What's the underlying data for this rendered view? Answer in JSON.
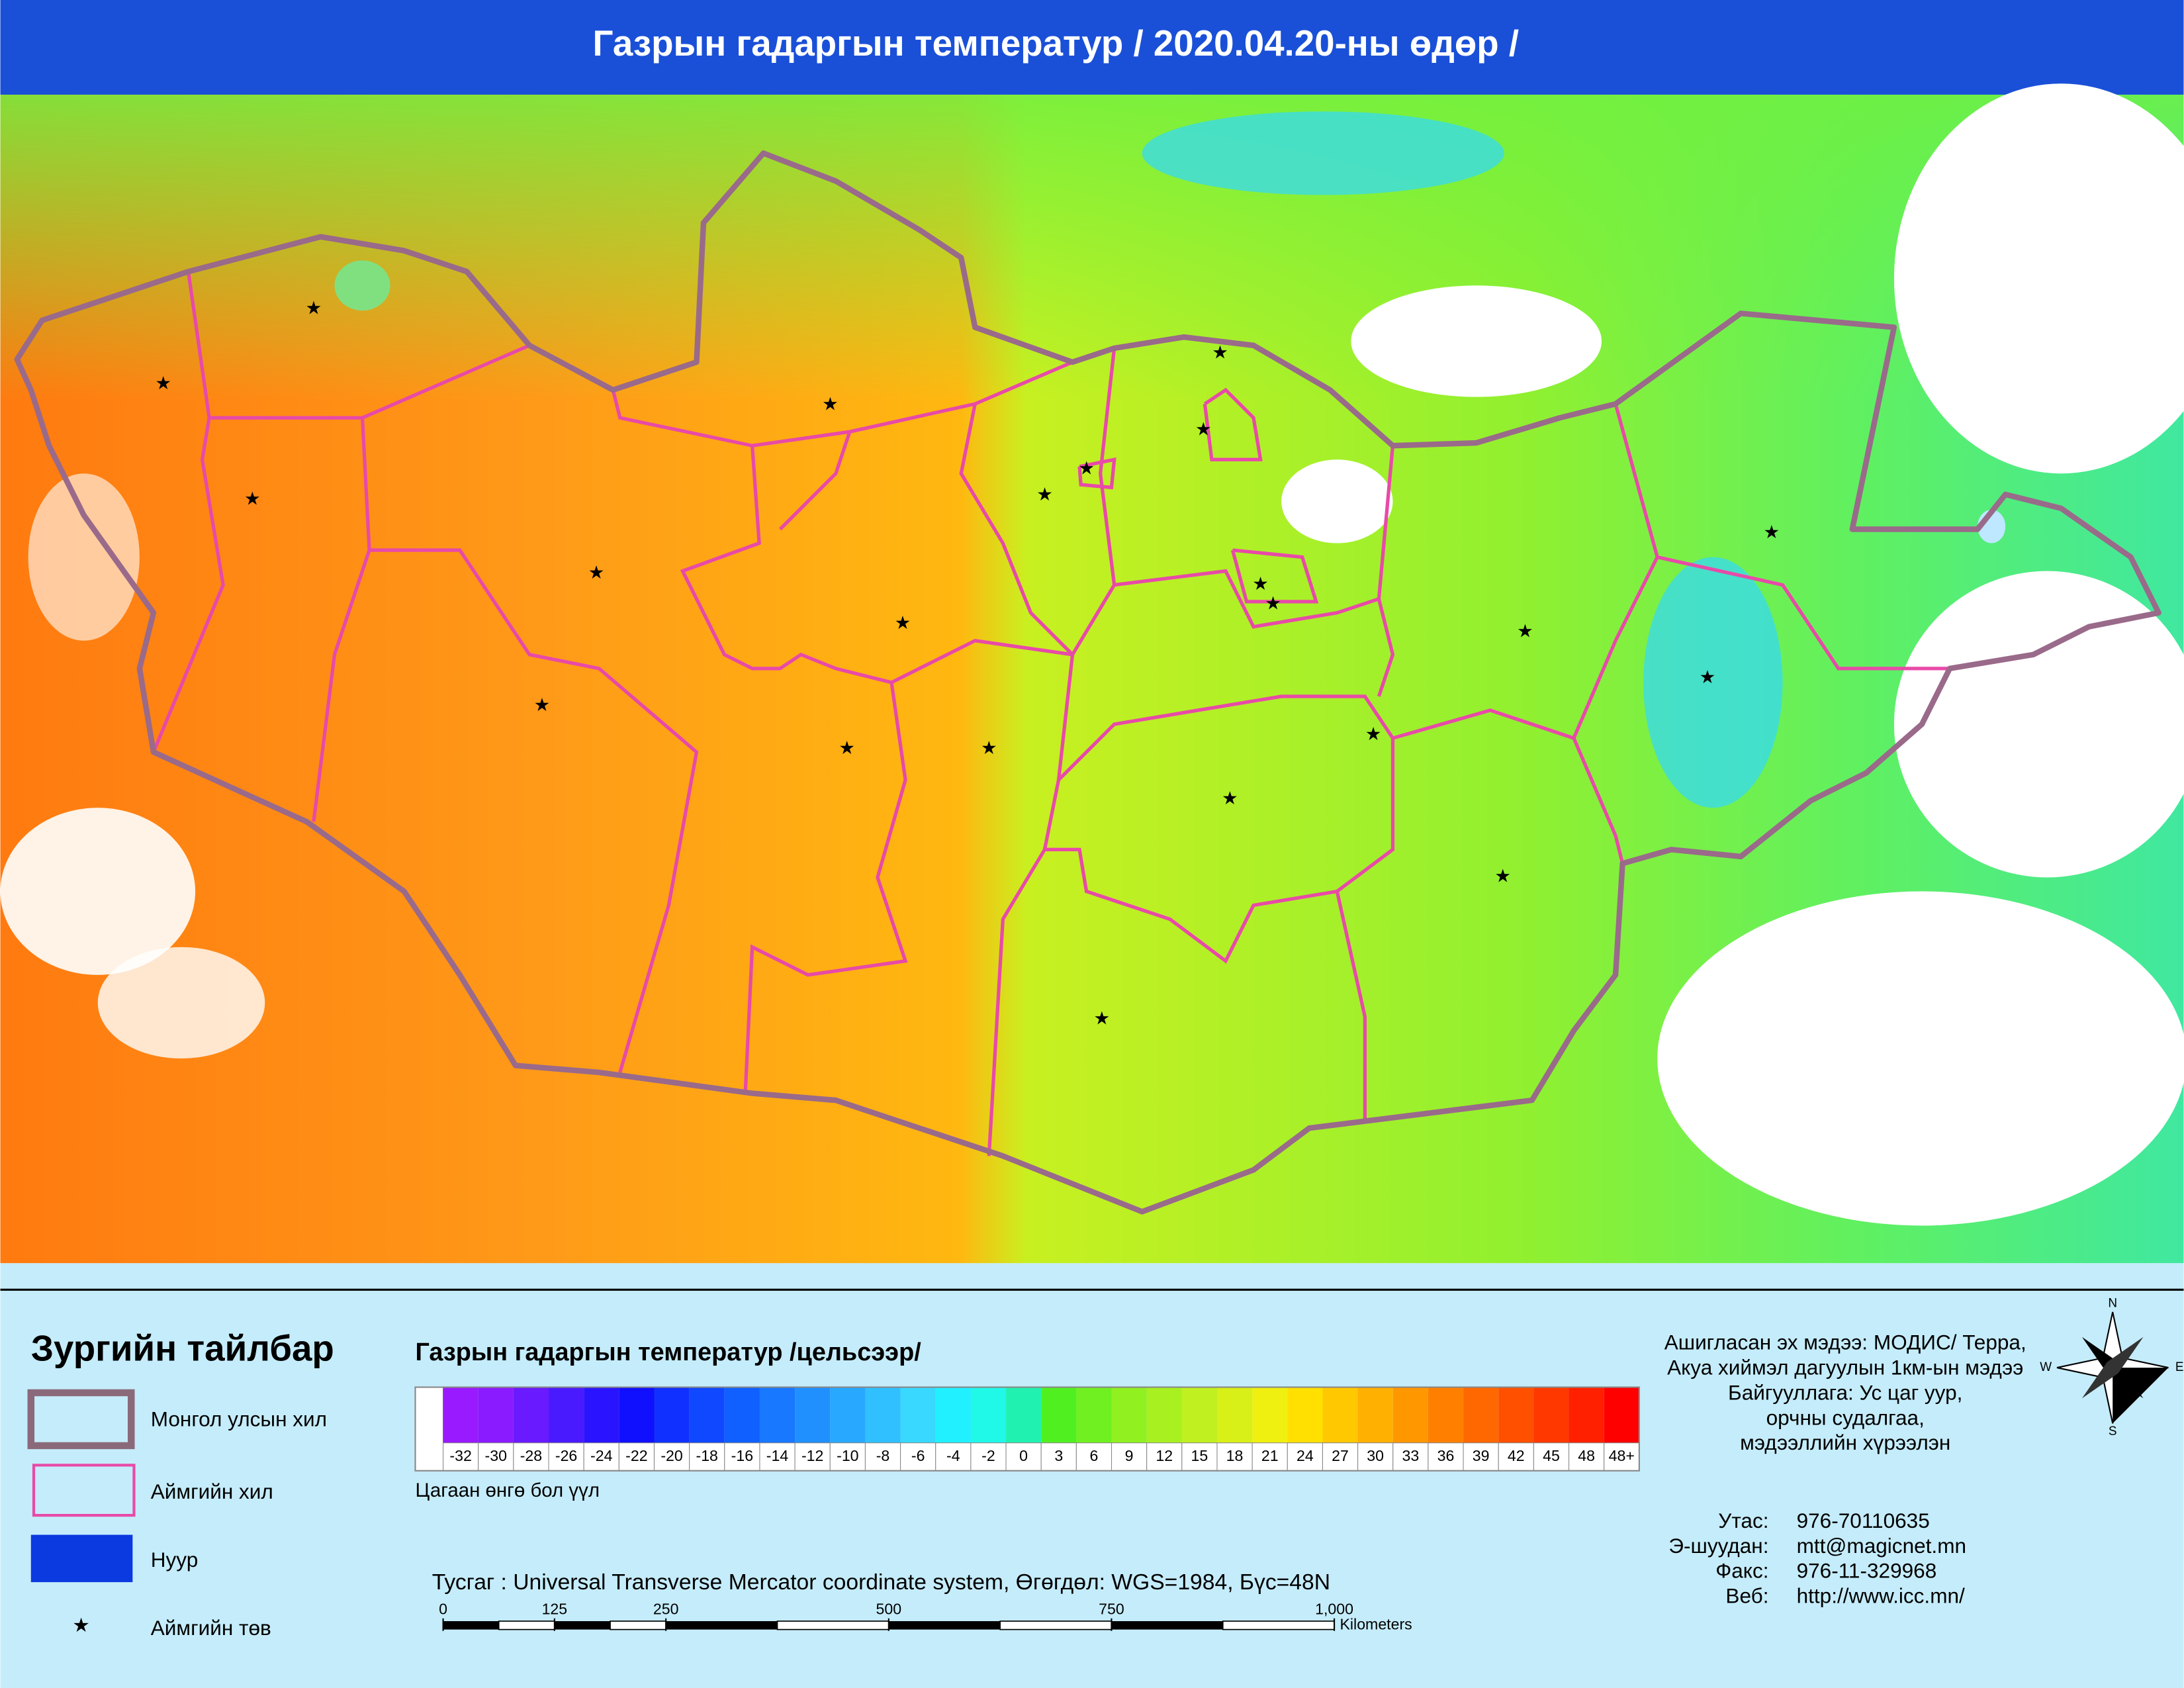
{
  "header": {
    "title": "Газрын гадаргын температур / 2020.04.20-ны өдөр /"
  },
  "legend": {
    "title": "Зургийн тайлбар",
    "items": [
      "Монгол улсын хил",
      "Аймгийн хил",
      "Нуур",
      "Аймгийн төв"
    ]
  },
  "color_scale": {
    "title": "Газрын гадаргын температур /цельсээр/",
    "note": "Цагаан өнгө бол үүл",
    "cloud_color": "#ffffff",
    "classes": [
      {
        "label": -32,
        "color": "#9a1aff"
      },
      {
        "label": -30,
        "color": "#8a1aff"
      },
      {
        "label": -28,
        "color": "#6a1aff"
      },
      {
        "label": -26,
        "color": "#4a1aff"
      },
      {
        "label": -24,
        "color": "#2a14ff"
      },
      {
        "label": -22,
        "color": "#1010ff"
      },
      {
        "label": -20,
        "color": "#1030ff"
      },
      {
        "label": -18,
        "color": "#1048ff"
      },
      {
        "label": -16,
        "color": "#1060ff"
      },
      {
        "label": -14,
        "color": "#1878ff"
      },
      {
        "label": -12,
        "color": "#2090ff"
      },
      {
        "label": -10,
        "color": "#28a8ff"
      },
      {
        "label": -8,
        "color": "#30c0ff"
      },
      {
        "label": -6,
        "color": "#38d8ff"
      },
      {
        "label": -4,
        "color": "#20f0ff"
      },
      {
        "label": -2,
        "color": "#20f8e8"
      },
      {
        "label": 0,
        "color": "#20f0b0"
      },
      {
        "label": 3,
        "color": "#50f020"
      },
      {
        "label": 6,
        "color": "#70f020"
      },
      {
        "label": 9,
        "color": "#90f020"
      },
      {
        "label": 12,
        "color": "#a8f020"
      },
      {
        "label": 15,
        "color": "#c0f020"
      },
      {
        "label": 18,
        "color": "#d8f018"
      },
      {
        "label": 21,
        "color": "#f0f010"
      },
      {
        "label": 24,
        "color": "#ffe000"
      },
      {
        "label": 27,
        "color": "#ffc800"
      },
      {
        "label": 30,
        "color": "#ffb000"
      },
      {
        "label": 33,
        "color": "#ff9800"
      },
      {
        "label": 36,
        "color": "#ff8000"
      },
      {
        "label": 39,
        "color": "#ff6800"
      },
      {
        "label": 42,
        "color": "#ff5000"
      },
      {
        "label": 45,
        "color": "#ff3800"
      },
      {
        "label": 48,
        "color": "#ff2000"
      },
      {
        "label": "48+",
        "color": "#ff0000"
      }
    ]
  },
  "projection": "Тусгаг : Universal Transverse Mercator coordinate system, Өгөгдөл: WGS=1984, Бүс=48N",
  "scale_bar": {
    "ticks": [
      0,
      125,
      250,
      500,
      750,
      {
        "value": 1000,
        "label": "1,000"
      }
    ],
    "unit": "Kilometers"
  },
  "source": [
    "Ашигласан эх мэдээ: МОДИС/ Терра,",
    "Акуа хиймэл дагуулын 1км-ын мэдээ",
    "Байгууллага: Ус цаг уур,",
    "орчны судалгаа,",
    "мэдээллийн хүрээлэн"
  ],
  "contacts": [
    {
      "label": "Утас:",
      "value": "976-70110635"
    },
    {
      "label": "Э-шуудан:",
      "value": "mtt@magicnet.mn"
    },
    {
      "label": "Факс:",
      "value": "976-11-329968"
    },
    {
      "label": "Веб:",
      "value": "http://www.icc.mn/"
    }
  ],
  "compass": {
    "n": "N",
    "e": "E",
    "s": "S",
    "w": "W"
  }
}
